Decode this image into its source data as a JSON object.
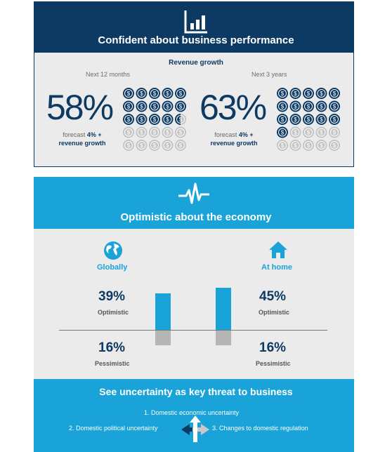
{
  "business": {
    "title": "Confident about business performance",
    "subtitle": "Revenue growth",
    "left": {
      "period": "Next 12 months",
      "percent": "58%",
      "forecast_prefix": "forecast",
      "forecast_value": "4% +",
      "forecast_suffix": "revenue growth",
      "filled_coins": 14.5,
      "total_coins": 25
    },
    "right": {
      "period": "Next 3 years",
      "percent": "63%",
      "forecast_prefix": "forecast",
      "forecast_value": "4% +",
      "forecast_suffix": "revenue growth",
      "filled_coins": 16,
      "total_coins": 25
    },
    "coin_symbol": "$",
    "colors": {
      "navy": "#0d3a63",
      "coin_empty": "#c4c4c4"
    }
  },
  "economy": {
    "title": "Optimistic about the economy",
    "globally": {
      "heading": "Globally",
      "optimistic_pct": "39%",
      "optimistic_label": "Optimistic",
      "pessimistic_pct": "16%",
      "pessimistic_label": "Pessimistic",
      "optimistic_value": 39,
      "pessimistic_value": 16,
      "icon": "globe-icon"
    },
    "home": {
      "heading": "At home",
      "optimistic_pct": "45%",
      "optimistic_label": "Optimistic",
      "pessimistic_pct": "16%",
      "pessimistic_label": "Pessimistic",
      "optimistic_value": 45,
      "pessimistic_value": 16,
      "icon": "house-icon"
    },
    "colors": {
      "accent": "#1aa3d8",
      "pessimistic_bar": "#b5b5b5"
    }
  },
  "threats": {
    "title": "See uncertainty as key threat to business",
    "item1": "1. Domestic economic uncertainty",
    "item2": "2. Domestic political uncertainty",
    "item3": "3. Changes to domestic regulation"
  }
}
